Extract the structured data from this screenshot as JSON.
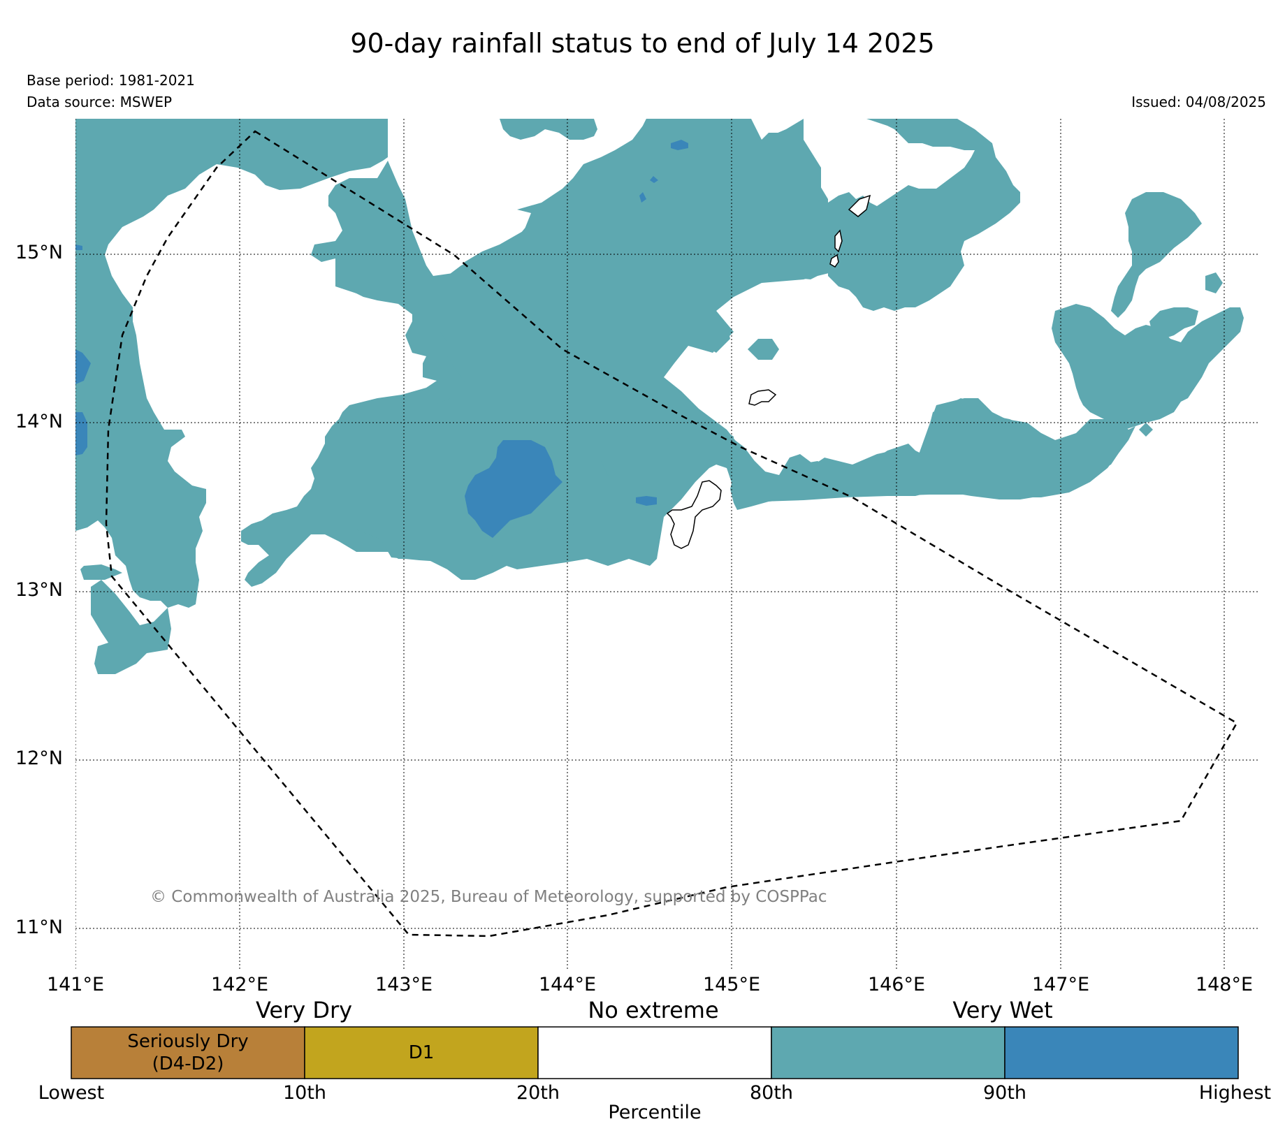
{
  "header": {
    "title": "90-day rainfall status to end of July 14 2025",
    "base_period": "Base period: 1981-2021",
    "data_source": "Data source: MSWEP",
    "issued": "Issued: 04/08/2025"
  },
  "map": {
    "latitude_labels": [
      "15°N",
      "14°N",
      "13°N",
      "12°N",
      "11°N"
    ],
    "longitude_labels": [
      "141°E",
      "142°E",
      "143°E",
      "144°E",
      "145°E",
      "146°E",
      "147°E",
      "148°E"
    ],
    "copyright": "© Commonwealth of Australia 2025, Bureau of Meteorology, supported by COSPPac",
    "colors": {
      "above_80th": "#5ea8b0",
      "above_90th": "#3a86b9",
      "outline": "#000000",
      "grid": "#000000"
    }
  },
  "legend": {
    "categories": {
      "very_dry": "Very Dry",
      "no_extreme": "No extreme",
      "very_wet": "Very Wet"
    },
    "segments": [
      {
        "label_line1": "Seriously Dry",
        "label_line2": "(D4-D2)",
        "color": "#b88039"
      },
      {
        "label_line1": "D1",
        "label_line2": "",
        "color": "#c2a51e"
      },
      {
        "label_line1": "",
        "label_line2": "",
        "color": "#ffffff"
      },
      {
        "label_line1": "",
        "label_line2": "",
        "color": "#5ea8b0"
      },
      {
        "label_line1": "",
        "label_line2": "",
        "color": "#3a86b9"
      }
    ],
    "ticks": [
      "Lowest",
      "10th",
      "20th",
      "80th",
      "90th",
      "Highest"
    ],
    "axis_label": "Percentile"
  }
}
